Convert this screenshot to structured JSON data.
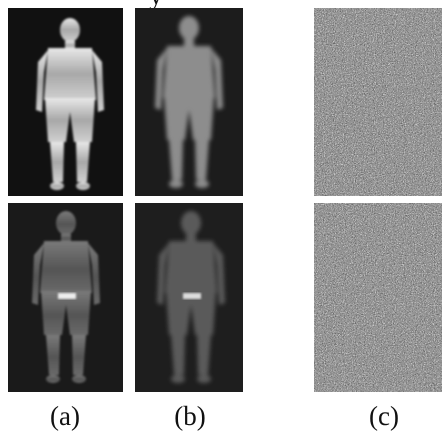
{
  "top_fragment": "y",
  "panels": [
    {
      "label": "(a)"
    },
    {
      "label": "(b)"
    },
    {
      "label": "(c)"
    }
  ]
}
